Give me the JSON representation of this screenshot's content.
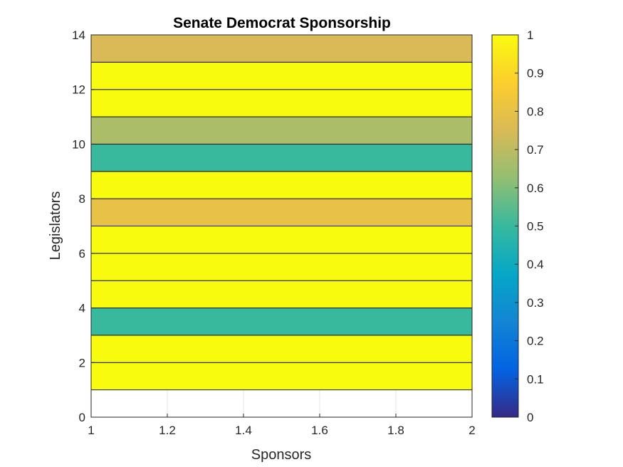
{
  "chart_data": {
    "type": "heatmap",
    "title": "Senate Democrat Sponsorship",
    "xlabel": "Sponsors",
    "ylabel": "Legislators",
    "xlim": [
      1,
      2
    ],
    "ylim": [
      0,
      14
    ],
    "x_ticks": [
      "1",
      "1.2",
      "1.4",
      "1.6",
      "1.8",
      "2"
    ],
    "y_ticks": [
      "0",
      "2",
      "4",
      "6",
      "8",
      "10",
      "12",
      "14"
    ],
    "rows": [
      {
        "y0": 1,
        "y1": 2,
        "value": 1.0
      },
      {
        "y0": 2,
        "y1": 3,
        "value": 1.0
      },
      {
        "y0": 3,
        "y1": 4,
        "value": 0.5
      },
      {
        "y0": 4,
        "y1": 5,
        "value": 1.0
      },
      {
        "y0": 5,
        "y1": 6,
        "value": 1.0
      },
      {
        "y0": 6,
        "y1": 7,
        "value": 1.0
      },
      {
        "y0": 7,
        "y1": 8,
        "value": 0.8
      },
      {
        "y0": 8,
        "y1": 9,
        "value": 1.0
      },
      {
        "y0": 9,
        "y1": 10,
        "value": 0.5
      },
      {
        "y0": 10,
        "y1": 11,
        "value": 0.67
      },
      {
        "y0": 11,
        "y1": 12,
        "value": 1.0
      },
      {
        "y0": 12,
        "y1": 13,
        "value": 1.0
      },
      {
        "y0": 13,
        "y1": 14,
        "value": 0.75
      }
    ],
    "colorbar": {
      "colormap": "parula",
      "clim": [
        0,
        1
      ],
      "ticks": [
        "0",
        "0.1",
        "0.2",
        "0.3",
        "0.4",
        "0.5",
        "0.6",
        "0.7",
        "0.8",
        "0.9",
        "1"
      ]
    },
    "grid": true,
    "colors": {
      "parula": [
        "#352a87",
        "#0363e1",
        "#1485d4",
        "#06a7c6",
        "#38b99e",
        "#92bf73",
        "#d9ba56",
        "#fcce2e",
        "#f9fb0e"
      ]
    }
  }
}
